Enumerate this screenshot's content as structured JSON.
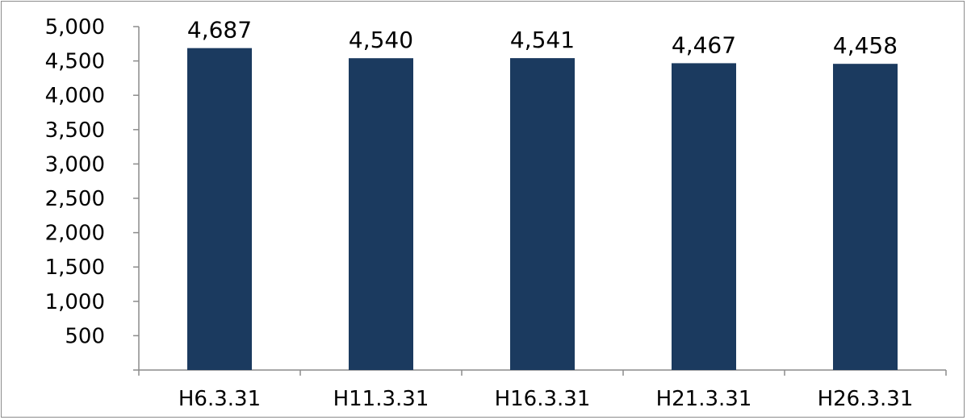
{
  "chart_data": {
    "type": "bar",
    "title": "",
    "xlabel": "",
    "ylabel": "",
    "categories": [
      "H6.3.31",
      "H11.3.31",
      "H16.3.31",
      "H21.3.31",
      "H26.3.31"
    ],
    "values": [
      4687,
      4540,
      4541,
      4467,
      4458
    ],
    "data_labels": [
      "4,687",
      "4,540",
      "4,541",
      "4,467",
      "4,458"
    ],
    "ylim": [
      0,
      5000
    ],
    "y_ticks": [
      500,
      1000,
      1500,
      2000,
      2500,
      3000,
      3500,
      4000,
      4500,
      5000
    ],
    "y_tick_labels": [
      "500",
      "1,000",
      "1,500",
      "2,000",
      "2,500",
      "3,000",
      "3,500",
      "4,000",
      "4,500",
      "5,000"
    ],
    "grid": false,
    "legend": "none",
    "colors": {
      "bar": "#1b3a5f",
      "axis": "#8c8c8c",
      "frame": "#8c8c8c",
      "text": "#000000"
    }
  }
}
